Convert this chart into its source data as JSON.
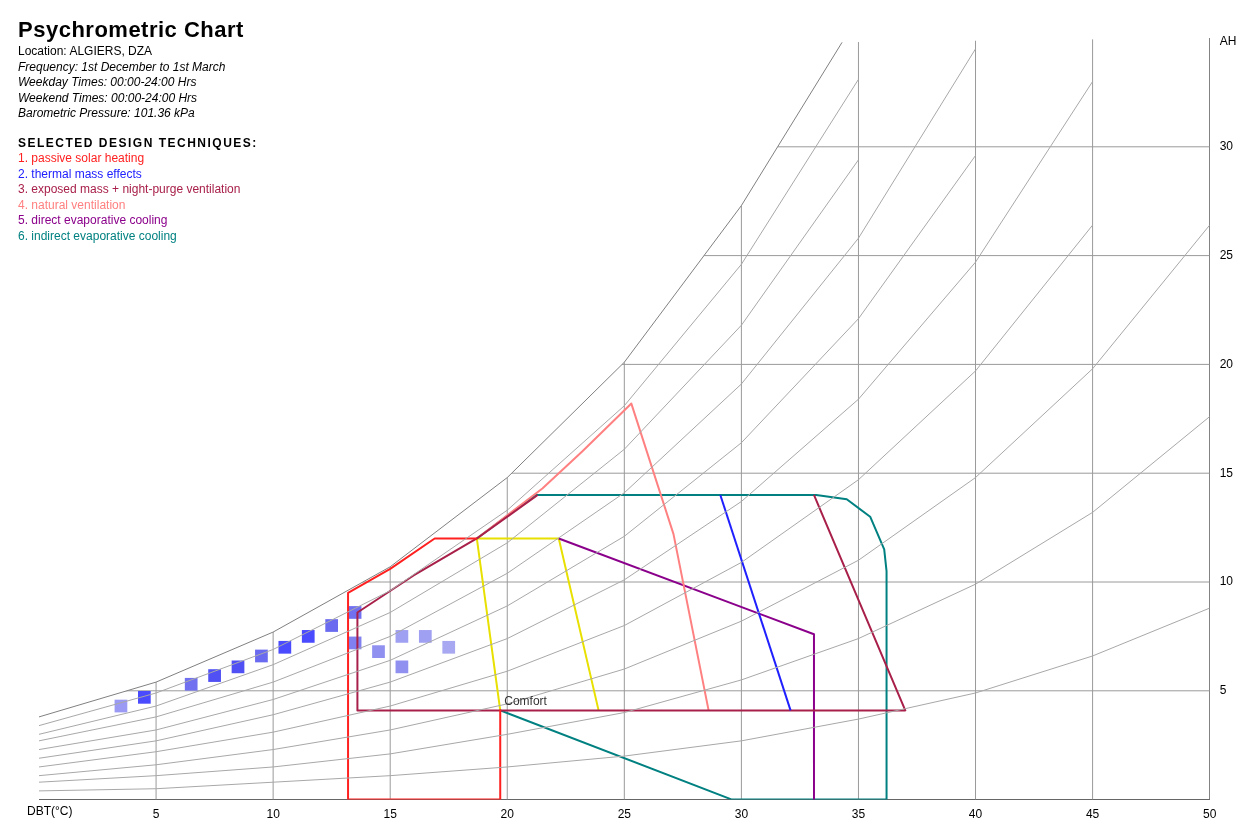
{
  "chart_data": {
    "type": "line",
    "title": "Psychrometric Chart",
    "subtitle": "Location: ALGIERS, DZA",
    "annotations": [
      "Frequency: 1st December to 1st March",
      "Weekday Times: 00:00-24:00 Hrs",
      "Weekend Times: 00:00-24:00 Hrs",
      "Barometric Pressure: 101.36 kPa",
      {
        "text": "Comfort",
        "x": 19.7,
        "y": 4.1
      }
    ],
    "xlabel": "DBT(°C)",
    "ylabel": "AH",
    "legend_title": "SELECTED DESIGN TECHNIQUES:",
    "legend": "top left",
    "grid": true,
    "marker": "none",
    "xlim": [
      0,
      50
    ],
    "xticks": [
      5,
      10,
      15,
      20,
      25,
      30,
      35,
      40,
      45,
      50
    ],
    "ylim": [
      0,
      35
    ],
    "yticks": [
      5,
      10,
      15,
      20,
      25,
      30
    ],
    "series": [
      {
        "color": "#808080",
        "x": [
          0,
          5,
          10,
          15,
          20,
          25,
          30,
          34.3
        ],
        "values": [
          3.8,
          5.4,
          7.7,
          10.7,
          14.8,
          20.1,
          27.3,
          34.8
        ]
      },
      {
        "color": "#a8a8a8",
        "x": [
          0,
          5,
          10,
          15,
          20,
          25,
          30,
          35,
          40,
          45,
          50
        ],
        "values": [
          0.4,
          0.5,
          0.8,
          1.1,
          1.5,
          2.0,
          2.7,
          3.7,
          4.9,
          6.6,
          8.8
        ]
      },
      {
        "color": "#a8a8a8",
        "x": [
          0,
          5,
          10,
          15,
          20,
          25,
          30,
          35,
          40,
          45,
          50
        ],
        "values": [
          0.8,
          1.1,
          1.5,
          2.1,
          3.0,
          4.0,
          5.5,
          7.4,
          9.9,
          13.2,
          17.6
        ]
      },
      {
        "color": "#a8a8a8",
        "x": [
          0,
          5,
          10,
          15,
          20,
          25,
          30,
          35,
          40,
          45,
          50
        ],
        "values": [
          1.1,
          1.6,
          2.3,
          3.2,
          4.4,
          6.0,
          8.2,
          11.0,
          14.8,
          19.8,
          26.4
        ]
      },
      {
        "color": "#a8a8a8",
        "x": [
          0,
          5,
          10,
          15,
          20,
          25,
          30,
          35,
          40,
          45
        ],
        "values": [
          1.5,
          2.2,
          3.1,
          4.3,
          5.9,
          8.0,
          10.9,
          14.7,
          19.7,
          26.4
        ]
      },
      {
        "color": "#a8a8a8",
        "x": [
          0,
          5,
          10,
          15,
          20,
          25,
          30,
          35,
          40,
          45
        ],
        "values": [
          1.9,
          2.7,
          3.9,
          5.4,
          7.4,
          10.1,
          13.7,
          18.4,
          24.7,
          33.0
        ]
      },
      {
        "color": "#a8a8a8",
        "x": [
          0,
          5,
          10,
          15,
          20,
          25,
          30,
          35,
          40
        ],
        "values": [
          2.3,
          3.2,
          4.6,
          6.4,
          8.9,
          12.1,
          16.4,
          22.1,
          29.6
        ]
      },
      {
        "color": "#a8a8a8",
        "x": [
          0,
          5,
          10,
          15,
          20,
          25,
          30,
          35,
          40
        ],
        "values": [
          2.7,
          3.8,
          5.4,
          7.5,
          10.4,
          14.1,
          19.1,
          25.8,
          34.5
        ]
      },
      {
        "color": "#a8a8a8",
        "x": [
          0,
          5,
          10,
          15,
          20,
          25,
          30,
          35
        ],
        "values": [
          3.0,
          4.3,
          6.2,
          8.6,
          11.8,
          16.1,
          21.8,
          29.4
        ]
      },
      {
        "color": "#a8a8a8",
        "x": [
          0,
          5,
          10,
          15,
          20,
          25,
          30,
          35
        ],
        "values": [
          3.4,
          4.9,
          6.9,
          9.6,
          13.3,
          18.1,
          24.6,
          33.1
        ]
      },
      {
        "type": "scatter",
        "marker": "square",
        "x": [
          3.5,
          4.5,
          6.5,
          7.5,
          8.5,
          9.5,
          10.5,
          11.5,
          12.5,
          13.5,
          13.5,
          14.5,
          15.5,
          15.5,
          16.5,
          17.5
        ],
        "values": [
          4.3,
          4.7,
          5.3,
          5.7,
          6.1,
          6.6,
          7.0,
          7.5,
          8.0,
          8.6,
          7.2,
          6.8,
          6.1,
          7.5,
          7.5,
          7.0
        ],
        "colors": [
          "#9a9af5",
          "#4a4aff",
          "#7070f0",
          "#5050f5",
          "#5050f5",
          "#6a6af0",
          "#4a4aff",
          "#4a4aff",
          "#6a6af0",
          "#7070f0",
          "#8080f0",
          "#9090f0",
          "#9090f0",
          "#a0a0f2",
          "#a0a0f2",
          "#a8a8f2"
        ]
      },
      {
        "name": "1. passive solar heating",
        "color": "#ff2020",
        "x": [
          19.7,
          19.7,
          13.2,
          13.2,
          15,
          16.9,
          18.7
        ],
        "values": [
          4.1,
          0,
          0,
          9.5,
          10.6,
          12,
          12
        ]
      },
      {
        "name": "2. thermal mass effects",
        "color": "#2020ff",
        "x": [
          29.1,
          32.1
        ],
        "values": [
          14,
          4.1
        ]
      },
      {
        "name": "3. exposed mass + night-purge ventilation",
        "color": "#a8204a",
        "x": [
          33.1,
          37,
          13.6,
          13.6,
          16,
          18.7,
          21.3
        ],
        "values": [
          14,
          4.1,
          4.1,
          8.6,
          10.3,
          12,
          14
        ]
      },
      {
        "name": "4. natural ventilation",
        "color": "#ff8080",
        "x": [
          18.7,
          21.5,
          23.2,
          25.3,
          27.1,
          28.6
        ],
        "values": [
          12,
          14.3,
          16,
          18.2,
          12.2,
          4.1
        ]
      },
      {
        "name": "5. direct evaporative cooling",
        "color": "#8b008b",
        "x": [
          22.2,
          33.1,
          33.1
        ],
        "values": [
          12,
          7.6,
          0
        ]
      },
      {
        "name": "6. indirect evaporative cooling",
        "color": "#008080",
        "x": [
          18.7,
          21.2,
          33.2,
          34.5,
          35.5,
          36.1,
          36.2,
          36.2,
          29.6,
          19.7
        ],
        "values": [
          12,
          14,
          14,
          13.8,
          13,
          11.5,
          10.5,
          0,
          0,
          4.1
        ]
      },
      {
        "color": "#e8e000",
        "x": [
          19.7,
          18.7,
          22.2,
          23.9
        ],
        "values": [
          4.1,
          12,
          12,
          4.1
        ]
      }
    ]
  }
}
